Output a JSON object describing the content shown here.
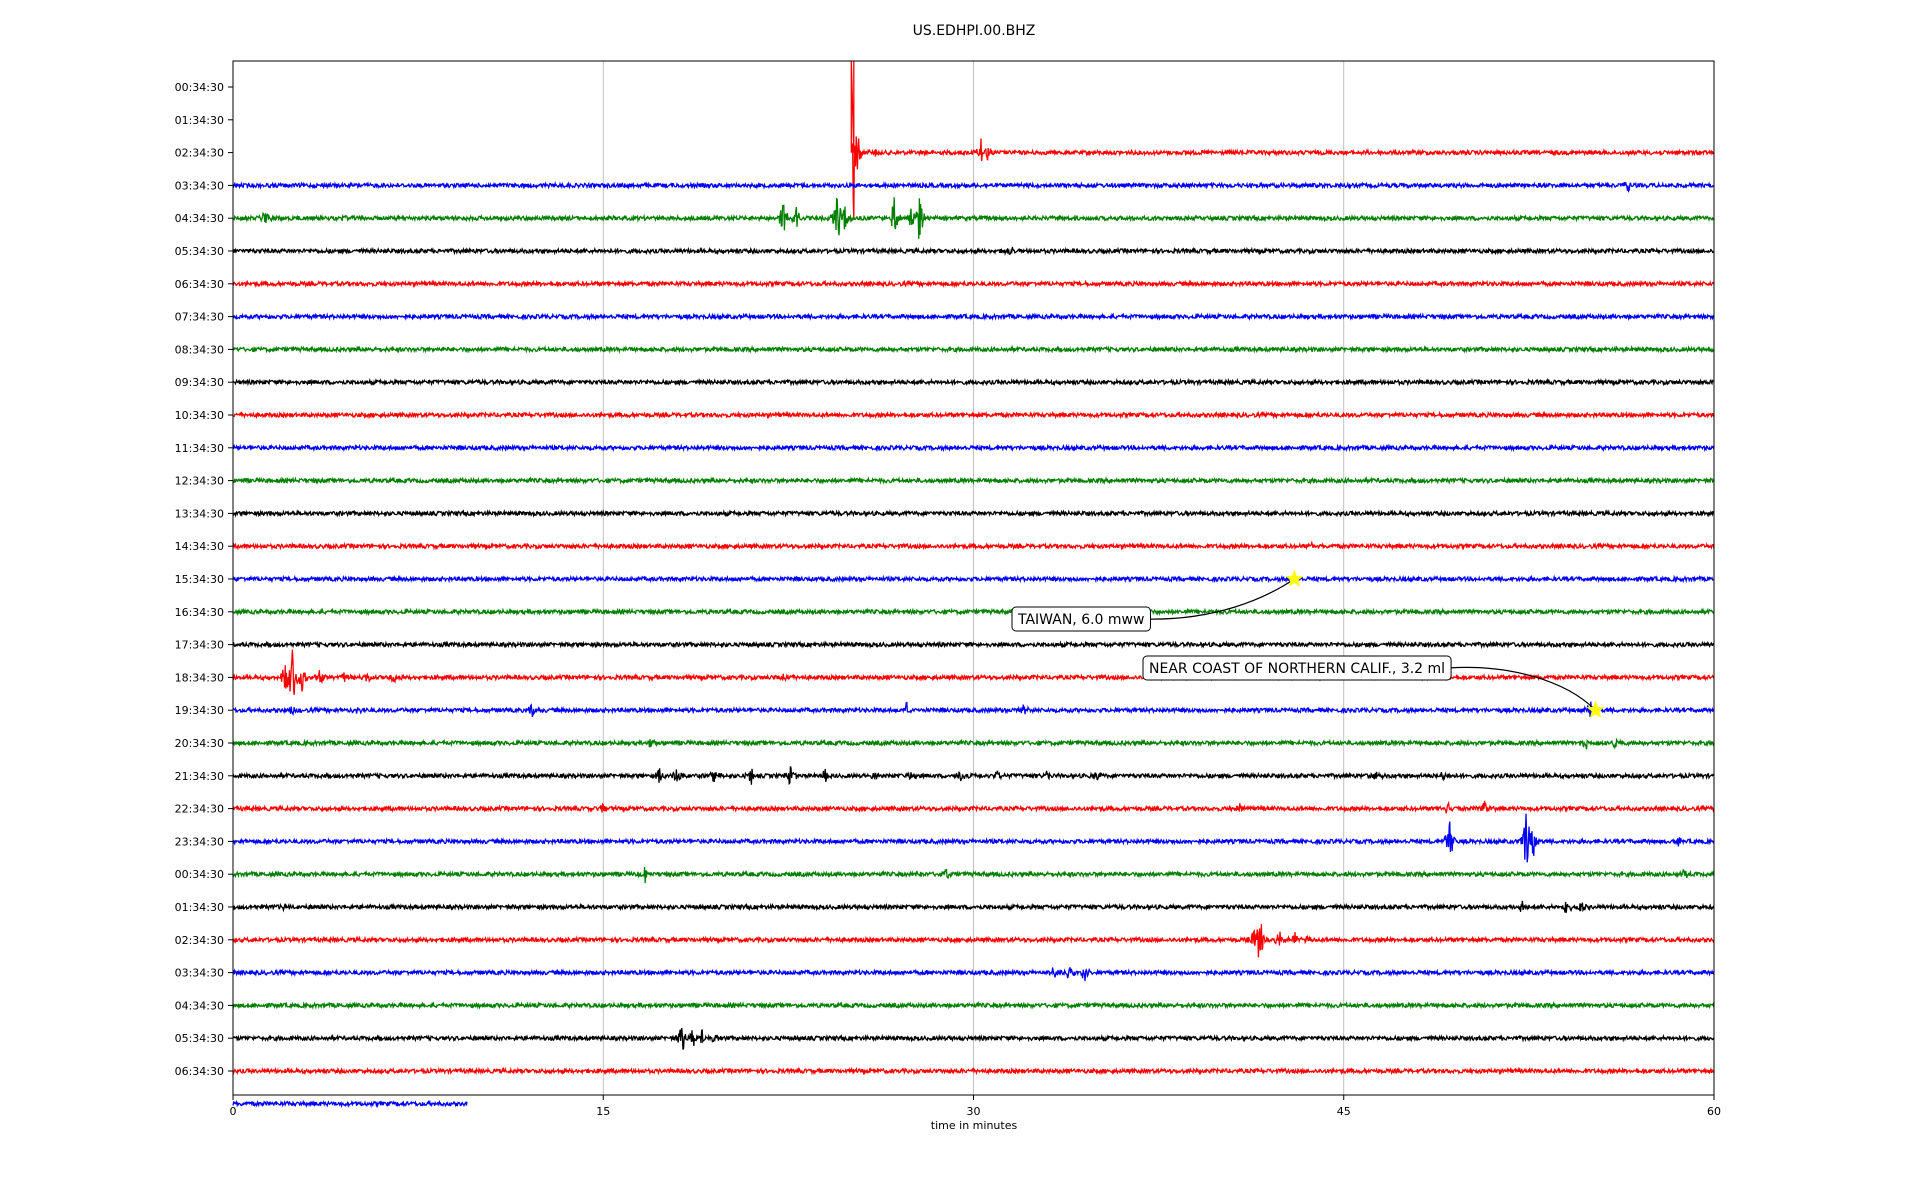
{
  "chart_data": {
    "type": "line",
    "title": "US.EDHPI.00.BHZ",
    "xlabel": "time in minutes",
    "ylabel": "",
    "xlim": [
      0,
      60
    ],
    "x_ticks": [
      0,
      15,
      30,
      45,
      60
    ],
    "x_tick_labels": [
      "0",
      "15",
      "30",
      "45",
      "60"
    ],
    "grid": "vertical",
    "trace_colors": [
      "#ff0000",
      "#0000ff",
      "#008000",
      "#000000"
    ],
    "y_tick_labels": [
      "00:34:30",
      "01:34:30",
      "02:34:30",
      "03:34:30",
      "04:34:30",
      "05:34:30",
      "06:34:30",
      "07:34:30",
      "08:34:30",
      "09:34:30",
      "10:34:30",
      "11:34:30",
      "12:34:30",
      "13:34:30",
      "14:34:30",
      "15:34:30",
      "16:34:30",
      "17:34:30",
      "18:34:30",
      "19:34:30",
      "20:34:30",
      "21:34:30",
      "22:34:30",
      "23:34:30",
      "00:34:30",
      "01:34:30",
      "02:34:30",
      "03:34:30",
      "04:34:30",
      "05:34:30",
      "06:34:30"
    ],
    "traces": [
      {
        "row": 2,
        "color": "#ff0000",
        "start_min": 25.1,
        "end_min": 60,
        "spikes": [
          {
            "t": 25.05,
            "amp": -5.0
          },
          {
            "t": 25.15,
            "amp": -4.5
          },
          {
            "t": 30.3,
            "amp": 0.8
          },
          {
            "t": 30.6,
            "amp": 0.4
          },
          {
            "t": 26.0,
            "amp": 0.3
          }
        ]
      },
      {
        "row": 3,
        "color": "#0000ff",
        "start_min": 0,
        "end_min": 60,
        "spikes": [
          {
            "t": 56.5,
            "amp": 0.3
          }
        ]
      },
      {
        "row": 4,
        "color": "#008000",
        "start_min": 0,
        "end_min": 60,
        "spikes": [
          {
            "t": 1.3,
            "amp": 0.5
          },
          {
            "t": 4.6,
            "amp": 0.4
          },
          {
            "t": 22.3,
            "amp": 0.9
          },
          {
            "t": 22.8,
            "amp": 0.7
          },
          {
            "t": 24.5,
            "amp": 1.7
          },
          {
            "t": 24.8,
            "amp": 0.8
          },
          {
            "t": 26.8,
            "amp": 1.2
          },
          {
            "t": 27.5,
            "amp": 0.6
          },
          {
            "t": 27.8,
            "amp": 1.3
          }
        ]
      },
      {
        "row": 5,
        "color": "#000000",
        "start_min": 0,
        "end_min": 60,
        "spikes": [
          {
            "t": 31.5,
            "amp": 0.3
          }
        ]
      },
      {
        "row": 6,
        "color": "#ff0000",
        "start_min": 0,
        "end_min": 60,
        "spikes": []
      },
      {
        "row": 7,
        "color": "#0000ff",
        "start_min": 0,
        "end_min": 60,
        "spikes": []
      },
      {
        "row": 8,
        "color": "#008000",
        "start_min": 0,
        "end_min": 60,
        "spikes": []
      },
      {
        "row": 9,
        "color": "#000000",
        "start_min": 0,
        "end_min": 60,
        "spikes": []
      },
      {
        "row": 10,
        "color": "#ff0000",
        "start_min": 0,
        "end_min": 60,
        "spikes": []
      },
      {
        "row": 11,
        "color": "#0000ff",
        "start_min": 0,
        "end_min": 60,
        "spikes": []
      },
      {
        "row": 12,
        "color": "#008000",
        "start_min": 0,
        "end_min": 60,
        "spikes": []
      },
      {
        "row": 13,
        "color": "#000000",
        "start_min": 0,
        "end_min": 60,
        "spikes": []
      },
      {
        "row": 14,
        "color": "#ff0000",
        "start_min": 0,
        "end_min": 60,
        "spikes": [
          {
            "t": 43.7,
            "amp": 0.2
          }
        ]
      },
      {
        "row": 15,
        "color": "#0000ff",
        "start_min": 0,
        "end_min": 60,
        "spikes": []
      },
      {
        "row": 16,
        "color": "#008000",
        "start_min": 0,
        "end_min": 60,
        "spikes": []
      },
      {
        "row": 17,
        "color": "#000000",
        "start_min": 0,
        "end_min": 60,
        "spikes": []
      },
      {
        "row": 18,
        "color": "#ff0000",
        "start_min": 0,
        "end_min": 60,
        "spikes": [
          {
            "t": 2.4,
            "amp": 1.8
          },
          {
            "t": 2.1,
            "amp": 0.8
          },
          {
            "t": 2.8,
            "amp": 0.7
          },
          {
            "t": 3.5,
            "amp": 0.4
          },
          {
            "t": 4.5,
            "amp": 0.3
          },
          {
            "t": 5.5,
            "amp": 0.3
          },
          {
            "t": 6.5,
            "amp": 0.3
          },
          {
            "t": 22.3,
            "amp": 0.3
          }
        ]
      },
      {
        "row": 19,
        "color": "#0000ff",
        "start_min": 0,
        "end_min": 60,
        "spikes": [
          {
            "t": 2.4,
            "amp": 0.4
          },
          {
            "t": 5.0,
            "amp": 0.3
          },
          {
            "t": 12.1,
            "amp": 0.5
          },
          {
            "t": 27.3,
            "amp": 0.4
          },
          {
            "t": 32.0,
            "amp": 0.3
          },
          {
            "t": 55.0,
            "amp": 0.4
          }
        ]
      },
      {
        "row": 20,
        "color": "#008000",
        "start_min": 0,
        "end_min": 60,
        "spikes": [
          {
            "t": 16.9,
            "amp": 0.3
          },
          {
            "t": 54.8,
            "amp": 0.3
          },
          {
            "t": 56.0,
            "amp": 0.4
          }
        ]
      },
      {
        "row": 21,
        "color": "#000000",
        "start_min": 0,
        "end_min": 60,
        "spikes": [
          {
            "t": 17.3,
            "amp": 0.5
          },
          {
            "t": 18.0,
            "amp": 0.6
          },
          {
            "t": 19.5,
            "amp": 0.5
          },
          {
            "t": 21.0,
            "amp": 0.5
          },
          {
            "t": 22.6,
            "amp": 0.7
          },
          {
            "t": 24.0,
            "amp": 0.4
          },
          {
            "t": 26.0,
            "amp": 0.4
          },
          {
            "t": 27.5,
            "amp": 0.4
          },
          {
            "t": 29.5,
            "amp": 0.4
          },
          {
            "t": 31.0,
            "amp": 0.3
          },
          {
            "t": 33.0,
            "amp": 0.3
          },
          {
            "t": 35.0,
            "amp": 0.3
          },
          {
            "t": 46.3,
            "amp": 0.3
          },
          {
            "t": 49.0,
            "amp": 0.3
          }
        ]
      },
      {
        "row": 22,
        "color": "#ff0000",
        "start_min": 0,
        "end_min": 60,
        "spikes": [
          {
            "t": 15.0,
            "amp": 0.3
          },
          {
            "t": 40.8,
            "amp": 0.3
          },
          {
            "t": 49.2,
            "amp": 0.5
          },
          {
            "t": 50.7,
            "amp": 0.5
          }
        ]
      },
      {
        "row": 23,
        "color": "#0000ff",
        "start_min": 0,
        "end_min": 60,
        "spikes": [
          {
            "t": 49.3,
            "amp": 1.5
          },
          {
            "t": 52.4,
            "amp": 1.8
          },
          {
            "t": 52.7,
            "amp": 0.8
          },
          {
            "t": 58.5,
            "amp": 0.3
          }
        ]
      },
      {
        "row": 24,
        "color": "#008000",
        "start_min": 0,
        "end_min": 60,
        "spikes": [
          {
            "t": 16.7,
            "amp": 0.5
          },
          {
            "t": 27.8,
            "amp": 0.4
          },
          {
            "t": 28.9,
            "amp": 0.3
          },
          {
            "t": 58.8,
            "amp": 0.3
          }
        ]
      },
      {
        "row": 25,
        "color": "#000000",
        "start_min": 0,
        "end_min": 60,
        "spikes": [
          {
            "t": 2.1,
            "amp": 0.2
          },
          {
            "t": 52.2,
            "amp": 0.4
          },
          {
            "t": 54.0,
            "amp": 0.5
          },
          {
            "t": 54.6,
            "amp": 0.4
          }
        ]
      },
      {
        "row": 26,
        "color": "#ff0000",
        "start_min": 0,
        "end_min": 60,
        "spikes": [
          {
            "t": 41.6,
            "amp": 1.4
          },
          {
            "t": 41.4,
            "amp": 0.7
          },
          {
            "t": 42.4,
            "amp": 0.5
          },
          {
            "t": 43.0,
            "amp": 0.4
          },
          {
            "t": 43.5,
            "amp": 0.3
          }
        ]
      },
      {
        "row": 27,
        "color": "#0000ff",
        "start_min": 0,
        "end_min": 60,
        "spikes": [
          {
            "t": 33.3,
            "amp": 0.4
          },
          {
            "t": 33.9,
            "amp": 0.5
          },
          {
            "t": 34.5,
            "amp": 0.5
          }
        ]
      },
      {
        "row": 28,
        "color": "#008000",
        "start_min": 0,
        "end_min": 60,
        "spikes": []
      },
      {
        "row": 29,
        "color": "#000000",
        "start_min": 0,
        "end_min": 60,
        "spikes": [
          {
            "t": 18.2,
            "amp": 1.0
          },
          {
            "t": 18.6,
            "amp": 0.6
          },
          {
            "t": 19.0,
            "amp": 0.5
          },
          {
            "t": 19.5,
            "amp": 0.3
          }
        ]
      },
      {
        "row": 30,
        "color": "#ff0000",
        "start_min": 0,
        "end_min": 60,
        "spikes": []
      },
      {
        "row": 31,
        "color": "#0000ff",
        "start_min": 0,
        "end_min": 9.5,
        "spikes": []
      }
    ],
    "annotations": [
      {
        "label": "TAIWAN, 6.0 mww",
        "row": 15,
        "t": 43.0,
        "marker": "star",
        "marker_color": "#ffff00"
      },
      {
        "label": "NEAR COAST OF NORTHERN CALIF., 3.2 ml",
        "row": 19,
        "t": 55.2,
        "marker": "star",
        "marker_color": "#ffff00"
      }
    ]
  }
}
